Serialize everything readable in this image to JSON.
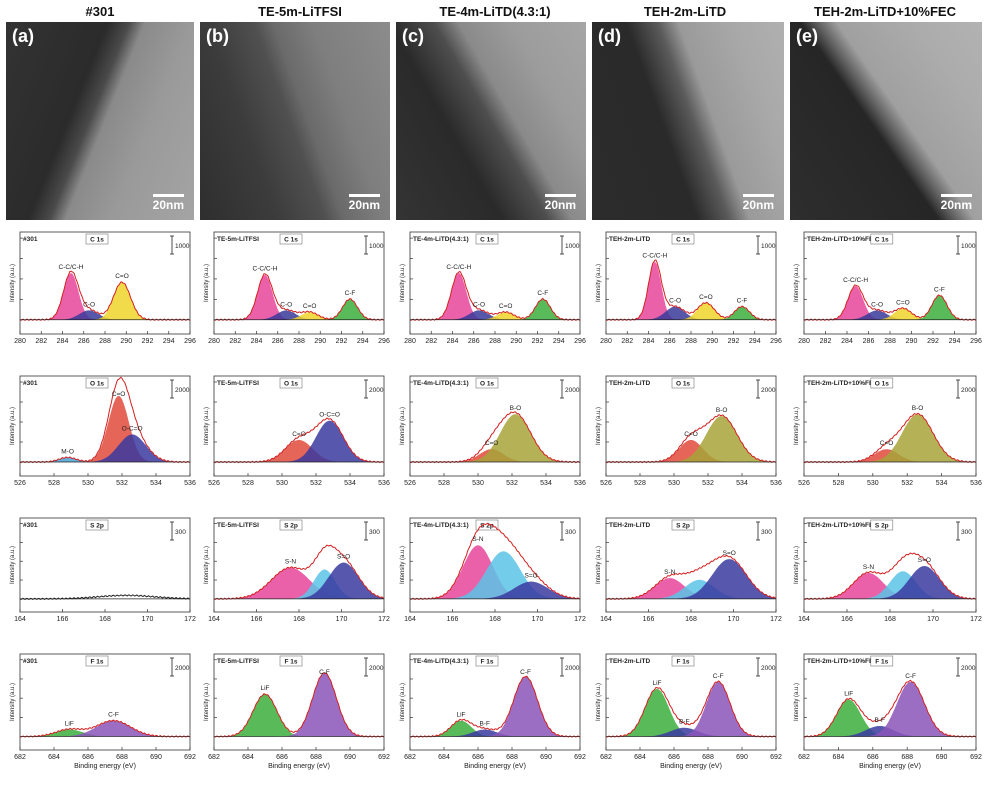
{
  "columns": [
    {
      "title": "#301",
      "label": "(a)",
      "scale": "20nm"
    },
    {
      "title": "TE-5m-LiTFSI",
      "label": "(b)",
      "scale": "20nm"
    },
    {
      "title": "TE-4m-LiTD(4.3:1)",
      "label": "(c)",
      "scale": "20nm"
    },
    {
      "title": "TEH-2m-LiTD",
      "label": "(d)",
      "scale": "20nm"
    },
    {
      "title": "TEH-2m-LiTD+10%FEC",
      "label": "(e)",
      "scale": "20nm"
    }
  ],
  "common": {
    "ylabel": "Intensity (a.u.)",
    "xlabel": "Binding energy (eV)"
  },
  "chart_data": [
    {
      "type": "area",
      "row": 0,
      "col": 0,
      "sample": "#301",
      "core": "C 1s",
      "scale_label": "1000",
      "xlim": [
        280,
        296
      ],
      "xticks": [
        280,
        282,
        284,
        286,
        288,
        290,
        292,
        294,
        296
      ],
      "peaks": [
        {
          "label": "C-C/C-H",
          "center": 284.8,
          "height": 0.5,
          "width": 0.7,
          "color": "#e8459a"
        },
        {
          "label": "C-O",
          "center": 286.5,
          "height": 0.1,
          "width": 0.9,
          "color": "#3a3a9a"
        },
        {
          "label": "C=O",
          "center": 289.6,
          "height": 0.4,
          "width": 0.8,
          "color": "#f0d52a"
        }
      ]
    },
    {
      "type": "area",
      "row": 0,
      "col": 1,
      "sample": "TE-5m-LiTFSI",
      "core": "C 1s",
      "scale_label": "1000",
      "xlim": [
        280,
        296
      ],
      "xticks": [
        280,
        282,
        284,
        286,
        288,
        290,
        292,
        294,
        296
      ],
      "peaks": [
        {
          "label": "C-C/C-H",
          "center": 284.8,
          "height": 0.48,
          "width": 0.7,
          "color": "#e8459a"
        },
        {
          "label": "C-O",
          "center": 286.8,
          "height": 0.1,
          "width": 0.9,
          "color": "#3a3a9a"
        },
        {
          "label": "C=O",
          "center": 289.0,
          "height": 0.08,
          "width": 0.8,
          "color": "#f0d52a"
        },
        {
          "label": "C-F",
          "center": 292.8,
          "height": 0.22,
          "width": 0.7,
          "color": "#3bae3b"
        }
      ]
    },
    {
      "type": "area",
      "row": 0,
      "col": 2,
      "sample": "TE-4m-LiTD(4.3:1)",
      "core": "C 1s",
      "scale_label": "1000",
      "xlim": [
        280,
        296
      ],
      "xticks": [
        280,
        282,
        284,
        286,
        288,
        290,
        292,
        294,
        296
      ],
      "peaks": [
        {
          "label": "C-C/C-H",
          "center": 284.6,
          "height": 0.5,
          "width": 0.7,
          "color": "#e8459a"
        },
        {
          "label": "C-O",
          "center": 286.5,
          "height": 0.1,
          "width": 0.9,
          "color": "#3a3a9a"
        },
        {
          "label": "C=O",
          "center": 289.0,
          "height": 0.08,
          "width": 0.8,
          "color": "#f0d52a"
        },
        {
          "label": "C-F",
          "center": 292.5,
          "height": 0.22,
          "width": 0.7,
          "color": "#3bae3b"
        }
      ]
    },
    {
      "type": "area",
      "row": 0,
      "col": 3,
      "sample": "TEH-2m-LiTD",
      "core": "C 1s",
      "scale_label": "1000",
      "xlim": [
        280,
        296
      ],
      "xticks": [
        280,
        282,
        284,
        286,
        288,
        290,
        292,
        294,
        296
      ],
      "peaks": [
        {
          "label": "C-C/C-H",
          "center": 284.6,
          "height": 0.62,
          "width": 0.6,
          "color": "#e8459a"
        },
        {
          "label": "C-O",
          "center": 286.5,
          "height": 0.14,
          "width": 0.9,
          "color": "#3a3a9a"
        },
        {
          "label": "C=O",
          "center": 289.4,
          "height": 0.18,
          "width": 0.8,
          "color": "#f0d52a"
        },
        {
          "label": "C-F",
          "center": 292.8,
          "height": 0.14,
          "width": 0.7,
          "color": "#3bae3b"
        }
      ]
    },
    {
      "type": "area",
      "row": 0,
      "col": 4,
      "sample": "TEH-2m-LiTD+10%FEC",
      "core": "C 1s",
      "scale_label": "1000",
      "xlim": [
        280,
        296
      ],
      "xticks": [
        280,
        282,
        284,
        286,
        288,
        290,
        292,
        294,
        296
      ],
      "peaks": [
        {
          "label": "C-C/C-H",
          "center": 284.8,
          "height": 0.36,
          "width": 0.7,
          "color": "#e8459a"
        },
        {
          "label": "C-O",
          "center": 286.8,
          "height": 0.1,
          "width": 0.9,
          "color": "#3a3a9a"
        },
        {
          "label": "C=O",
          "center": 289.2,
          "height": 0.12,
          "width": 0.8,
          "color": "#f0d52a"
        },
        {
          "label": "C-F",
          "center": 292.6,
          "height": 0.26,
          "width": 0.7,
          "color": "#3bae3b"
        }
      ]
    },
    {
      "type": "area",
      "row": 1,
      "col": 0,
      "sample": "#301",
      "core": "O 1s",
      "scale_label": "2000",
      "xlim": [
        526,
        536
      ],
      "xticks": [
        526,
        528,
        530,
        532,
        534,
        536
      ],
      "peaks": [
        {
          "label": "M-O",
          "center": 528.8,
          "height": 0.05,
          "width": 0.5,
          "color": "#4aa3d6"
        },
        {
          "label": "C=O",
          "center": 531.8,
          "height": 0.72,
          "width": 0.6,
          "color": "#e14a3c"
        },
        {
          "label": "O-C=O",
          "center": 532.6,
          "height": 0.3,
          "width": 0.8,
          "color": "#3a3aa0"
        }
      ]
    },
    {
      "type": "area",
      "row": 1,
      "col": 1,
      "sample": "TE-5m-LiTFSI",
      "core": "O 1s",
      "scale_label": "2000",
      "xlim": [
        526,
        536
      ],
      "xticks": [
        526,
        528,
        530,
        532,
        534,
        536
      ],
      "peaks": [
        {
          "label": "C=O",
          "center": 531.0,
          "height": 0.24,
          "width": 0.8,
          "color": "#e14a3c"
        },
        {
          "label": "O-C=O",
          "center": 532.8,
          "height": 0.45,
          "width": 0.8,
          "color": "#3a3aa0"
        }
      ]
    },
    {
      "type": "area",
      "row": 1,
      "col": 2,
      "sample": "TE-4m-LiTD(4.3:1)",
      "core": "O 1s",
      "scale_label": "2000",
      "xlim": [
        526,
        536
      ],
      "xticks": [
        526,
        528,
        530,
        532,
        534,
        536
      ],
      "peaks": [
        {
          "label": "C=O",
          "center": 530.8,
          "height": 0.14,
          "width": 0.7,
          "color": "#e14a3c"
        },
        {
          "label": "B-O",
          "center": 532.2,
          "height": 0.52,
          "width": 0.9,
          "color": "#a7a33a"
        }
      ]
    },
    {
      "type": "area",
      "row": 1,
      "col": 3,
      "sample": "TEH-2m-LiTD",
      "core": "O 1s",
      "scale_label": "2000",
      "xlim": [
        526,
        536
      ],
      "xticks": [
        526,
        528,
        530,
        532,
        534,
        536
      ],
      "peaks": [
        {
          "label": "C=O",
          "center": 531.0,
          "height": 0.24,
          "width": 0.7,
          "color": "#e14a3c"
        },
        {
          "label": "B-O",
          "center": 532.8,
          "height": 0.5,
          "width": 0.9,
          "color": "#a7a33a"
        }
      ]
    },
    {
      "type": "area",
      "row": 1,
      "col": 4,
      "sample": "TEH-2m-LiTD+10%FEC",
      "core": "O 1s",
      "scale_label": "2000",
      "xlim": [
        526,
        536
      ],
      "xticks": [
        526,
        528,
        530,
        532,
        534,
        536
      ],
      "peaks": [
        {
          "label": "C=O",
          "center": 530.8,
          "height": 0.14,
          "width": 0.7,
          "color": "#e14a3c"
        },
        {
          "label": "B-O",
          "center": 532.6,
          "height": 0.52,
          "width": 0.9,
          "color": "#a7a33a"
        }
      ]
    },
    {
      "type": "line",
      "row": 2,
      "col": 0,
      "sample": "#301",
      "core": "S 2p",
      "scale_label": "300",
      "xlim": [
        164,
        172
      ],
      "xticks": [
        164,
        166,
        168,
        170,
        172
      ],
      "peaks": [
        {
          "label": "",
          "center": 169.0,
          "height": 0.04,
          "width": 1.3,
          "color": "none"
        }
      ]
    },
    {
      "type": "area",
      "row": 2,
      "col": 1,
      "sample": "TE-5m-LiTFSI",
      "core": "S 2p",
      "scale_label": "300",
      "xlim": [
        164,
        172
      ],
      "xticks": [
        164,
        166,
        168,
        170,
        172
      ],
      "peaks": [
        {
          "label": "S-N",
          "center": 167.6,
          "height": 0.36,
          "width": 0.9,
          "color": "#e8459a"
        },
        {
          "label": "",
          "center": 169.2,
          "height": 0.34,
          "width": 0.5,
          "color": "#5bc4e6"
        },
        {
          "label": "S=O",
          "center": 170.1,
          "height": 0.42,
          "width": 0.7,
          "color": "#3a3aa0"
        }
      ]
    },
    {
      "type": "area",
      "row": 2,
      "col": 2,
      "sample": "TE-4m-LiTD(4.3:1)",
      "core": "S 2p",
      "scale_label": "300",
      "xlim": [
        164,
        172
      ],
      "xticks": [
        164,
        166,
        168,
        170,
        172
      ],
      "peaks": [
        {
          "label": "S-N",
          "center": 167.2,
          "height": 0.62,
          "width": 0.7,
          "color": "#e8459a"
        },
        {
          "label": "",
          "center": 168.4,
          "height": 0.55,
          "width": 0.8,
          "color": "#5bc4e6"
        },
        {
          "label": "S=O",
          "center": 169.7,
          "height": 0.2,
          "width": 0.8,
          "color": "#3a3aa0"
        }
      ]
    },
    {
      "type": "area",
      "row": 2,
      "col": 3,
      "sample": "TEH-2m-LiTD",
      "core": "S 2p",
      "scale_label": "300",
      "xlim": [
        164,
        172
      ],
      "xticks": [
        164,
        166,
        168,
        170,
        172
      ],
      "peaks": [
        {
          "label": "S-N",
          "center": 167.0,
          "height": 0.24,
          "width": 0.7,
          "color": "#e8459a"
        },
        {
          "label": "",
          "center": 168.4,
          "height": 0.22,
          "width": 0.7,
          "color": "#5bc4e6"
        },
        {
          "label": "S=O",
          "center": 169.8,
          "height": 0.46,
          "width": 0.8,
          "color": "#3a3aa0"
        }
      ]
    },
    {
      "type": "area",
      "row": 2,
      "col": 4,
      "sample": "TEH-2m-LiTD+10%FEC",
      "core": "S 2p",
      "scale_label": "300",
      "xlim": [
        164,
        172
      ],
      "xticks": [
        164,
        166,
        168,
        170,
        172
      ],
      "peaks": [
        {
          "label": "S-N",
          "center": 167.0,
          "height": 0.3,
          "width": 0.7,
          "color": "#e8459a"
        },
        {
          "label": "",
          "center": 168.6,
          "height": 0.32,
          "width": 0.6,
          "color": "#5bc4e6"
        },
        {
          "label": "S=O",
          "center": 169.6,
          "height": 0.38,
          "width": 0.7,
          "color": "#3a3aa0"
        }
      ]
    },
    {
      "type": "area",
      "row": 3,
      "col": 0,
      "sample": "#301",
      "core": "F 1s",
      "scale_label": "2000",
      "xlim": [
        682,
        692
      ],
      "xticks": [
        682,
        684,
        686,
        688,
        690,
        692
      ],
      "peaks": [
        {
          "label": "LiF",
          "center": 684.9,
          "height": 0.08,
          "width": 0.8,
          "color": "#3bae3b"
        },
        {
          "label": "C-F",
          "center": 687.5,
          "height": 0.18,
          "width": 1.0,
          "color": "#8a55b8"
        }
      ]
    },
    {
      "type": "area",
      "row": 3,
      "col": 1,
      "sample": "TE-5m-LiTFSI",
      "core": "F 1s",
      "scale_label": "2000",
      "xlim": [
        682,
        692
      ],
      "xticks": [
        682,
        684,
        686,
        688,
        690,
        692
      ],
      "peaks": [
        {
          "label": "LiF",
          "center": 685.0,
          "height": 0.48,
          "width": 0.7,
          "color": "#3bae3b"
        },
        {
          "label": "C-F",
          "center": 688.5,
          "height": 0.72,
          "width": 0.7,
          "color": "#8a55b8"
        }
      ]
    },
    {
      "type": "area",
      "row": 3,
      "col": 2,
      "sample": "TE-4m-LiTD(4.3:1)",
      "core": "F 1s",
      "scale_label": "2000",
      "xlim": [
        682,
        692
      ],
      "xticks": [
        682,
        684,
        686,
        688,
        690,
        692
      ],
      "peaks": [
        {
          "label": "LiF",
          "center": 685.0,
          "height": 0.18,
          "width": 0.6,
          "color": "#3bae3b"
        },
        {
          "label": "B-F",
          "center": 686.4,
          "height": 0.08,
          "width": 0.7,
          "color": "#3a3aa0"
        },
        {
          "label": "C-F",
          "center": 688.8,
          "height": 0.68,
          "width": 0.7,
          "color": "#8a55b8"
        }
      ]
    },
    {
      "type": "area",
      "row": 3,
      "col": 3,
      "sample": "TEH-2m-LiTD",
      "core": "F 1s",
      "scale_label": "2000",
      "xlim": [
        682,
        692
      ],
      "xticks": [
        682,
        684,
        686,
        688,
        690,
        692
      ],
      "peaks": [
        {
          "label": "LiF",
          "center": 685.0,
          "height": 0.54,
          "width": 0.7,
          "color": "#3bae3b"
        },
        {
          "label": "B-F",
          "center": 686.6,
          "height": 0.1,
          "width": 0.8,
          "color": "#3a3aa0"
        },
        {
          "label": "C-F",
          "center": 688.6,
          "height": 0.62,
          "width": 0.7,
          "color": "#8a55b8"
        }
      ]
    },
    {
      "type": "area",
      "row": 3,
      "col": 4,
      "sample": "TEH-2m-LiTD+10%FEC",
      "core": "F 1s",
      "scale_label": "2000",
      "xlim": [
        682,
        692
      ],
      "xticks": [
        682,
        684,
        686,
        688,
        690,
        692
      ],
      "peaks": [
        {
          "label": "LiF",
          "center": 684.6,
          "height": 0.42,
          "width": 0.7,
          "color": "#3bae3b"
        },
        {
          "label": "B-F",
          "center": 686.4,
          "height": 0.12,
          "width": 0.8,
          "color": "#3a3aa0"
        },
        {
          "label": "C-F",
          "center": 688.2,
          "height": 0.62,
          "width": 0.8,
          "color": "#8a55b8"
        }
      ]
    }
  ]
}
